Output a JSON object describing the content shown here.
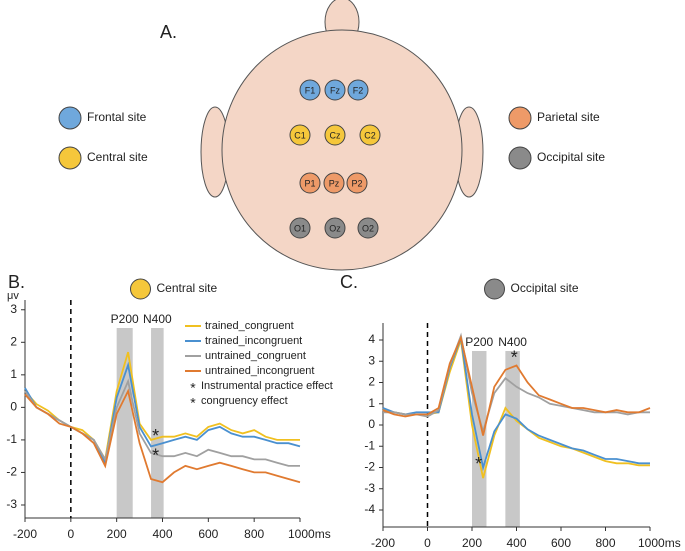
{
  "diagram": {
    "label": "A.",
    "sites": [
      {
        "name": "Frontal site",
        "color": "#6fa8dc",
        "electrodes": [
          "F1",
          "Fz",
          "F2"
        ]
      },
      {
        "name": "Central site",
        "color": "#f5c73b",
        "electrodes": [
          "C1",
          "Cz",
          "C2"
        ]
      },
      {
        "name": "Parietal site",
        "color": "#ee9a68",
        "electrodes": [
          "P1",
          "Pz",
          "P2"
        ]
      },
      {
        "name": "Occipital site",
        "color": "#8a8a8a",
        "electrodes": [
          "O1",
          "Oz",
          "O2"
        ]
      }
    ]
  },
  "chart_data": [
    {
      "type": "line",
      "panel": "B.",
      "title": "Central site",
      "title_marker_color": "#f5c73b",
      "ylabel": "μv",
      "x": [
        -200,
        -150,
        -100,
        -50,
        0,
        50,
        100,
        150,
        200,
        250,
        300,
        350,
        400,
        450,
        500,
        550,
        600,
        650,
        700,
        750,
        800,
        850,
        900,
        950,
        1000
      ],
      "series": [
        {
          "name": "trained_congruent",
          "color": "#f0c020",
          "values": [
            0.5,
            0.1,
            -0.1,
            -0.4,
            -0.6,
            -0.7,
            -1.0,
            -1.6,
            0.5,
            1.7,
            -0.5,
            -1.0,
            -0.9,
            -0.9,
            -0.8,
            -0.9,
            -0.6,
            -0.5,
            -0.7,
            -0.8,
            -0.7,
            -0.9,
            -1.0,
            -1.0,
            -1.0
          ]
        },
        {
          "name": "trained_incongruent",
          "color": "#4a90d0",
          "values": [
            0.6,
            0.0,
            -0.2,
            -0.4,
            -0.6,
            -0.8,
            -1.0,
            -1.7,
            0.3,
            1.3,
            -0.6,
            -1.2,
            -1.1,
            -1.0,
            -0.9,
            -1.0,
            -0.7,
            -0.6,
            -0.8,
            -0.9,
            -0.9,
            -1.0,
            -1.1,
            -1.1,
            -1.2
          ]
        },
        {
          "name": "untrained_congruent",
          "color": "#a0a0a0",
          "values": [
            0.5,
            0.0,
            -0.2,
            -0.4,
            -0.6,
            -0.8,
            -1.0,
            -1.6,
            0.0,
            0.8,
            -0.8,
            -1.4,
            -1.5,
            -1.5,
            -1.4,
            -1.5,
            -1.3,
            -1.4,
            -1.5,
            -1.5,
            -1.6,
            -1.6,
            -1.7,
            -1.8,
            -1.8
          ]
        },
        {
          "name": "untrained_incongruent",
          "color": "#e07a30",
          "values": [
            0.4,
            0.0,
            -0.2,
            -0.5,
            -0.6,
            -0.8,
            -1.1,
            -1.8,
            -0.2,
            0.5,
            -1.1,
            -2.2,
            -2.3,
            -2.0,
            -1.8,
            -1.9,
            -1.8,
            -1.7,
            -1.8,
            -1.9,
            -2.0,
            -2.0,
            -2.1,
            -2.2,
            -2.3
          ]
        }
      ],
      "legend_notes": [
        {
          "symbol": "*",
          "label": "Instrumental practice effect",
          "color": "#e8202a"
        },
        {
          "symbol": "*",
          "label": "congruency effect",
          "color": "#000000"
        }
      ],
      "bands": [
        {
          "label": "P200",
          "range": [
            200,
            270
          ]
        },
        {
          "label": "N400",
          "range": [
            350,
            405
          ]
        }
      ],
      "annotations": [
        {
          "text": "*",
          "x": 370,
          "y": -0.8,
          "color": "#000000"
        },
        {
          "text": "*",
          "x": 370,
          "y": -1.4,
          "color": "#e8202a"
        }
      ],
      "xlim": [
        -200,
        1000
      ],
      "xticks": [
        -200,
        0,
        200,
        400,
        600,
        800,
        {
          "value": 1000,
          "label": "1000ms"
        }
      ],
      "ylim": [
        -3.4,
        3.3
      ],
      "yticks": [
        3,
        2,
        1,
        0,
        -1,
        -2,
        -3
      ]
    },
    {
      "type": "line",
      "panel": "C.",
      "title": "Occipital site",
      "title_marker_color": "#8a8a8a",
      "x": [
        -200,
        -150,
        -100,
        -50,
        0,
        50,
        100,
        150,
        200,
        250,
        300,
        350,
        400,
        450,
        500,
        550,
        600,
        650,
        700,
        750,
        800,
        850,
        900,
        950,
        1000
      ],
      "series": [
        {
          "name": "trained_congruent",
          "color": "#f0c020",
          "values": [
            0.7,
            0.6,
            0.5,
            0.5,
            0.5,
            0.6,
            2.5,
            4.0,
            0.0,
            -2.5,
            -0.5,
            0.8,
            0.2,
            -0.2,
            -0.6,
            -0.8,
            -1.0,
            -1.1,
            -1.3,
            -1.5,
            -1.7,
            -1.8,
            -1.8,
            -1.9,
            -1.9
          ]
        },
        {
          "name": "trained_incongruent",
          "color": "#4a90d0",
          "values": [
            0.8,
            0.6,
            0.5,
            0.6,
            0.6,
            0.6,
            2.7,
            4.1,
            0.5,
            -2.0,
            -0.3,
            0.5,
            0.3,
            -0.2,
            -0.5,
            -0.7,
            -0.9,
            -1.1,
            -1.2,
            -1.4,
            -1.6,
            -1.6,
            -1.7,
            -1.8,
            -1.8
          ]
        },
        {
          "name": "untrained_congruent",
          "color": "#a0a0a0",
          "values": [
            0.6,
            0.6,
            0.5,
            0.5,
            0.4,
            0.7,
            2.8,
            4.2,
            1.5,
            -0.3,
            1.5,
            2.2,
            1.8,
            1.5,
            1.3,
            1.0,
            0.9,
            0.8,
            0.7,
            0.6,
            0.6,
            0.6,
            0.5,
            0.6,
            0.6
          ]
        },
        {
          "name": "untrained_incongruent",
          "color": "#e07a30",
          "values": [
            0.7,
            0.5,
            0.4,
            0.5,
            0.5,
            0.8,
            2.9,
            4.1,
            1.8,
            -0.5,
            1.8,
            2.6,
            2.8,
            2.0,
            1.4,
            1.2,
            1.0,
            0.8,
            0.8,
            0.7,
            0.6,
            0.7,
            0.6,
            0.6,
            0.8
          ]
        }
      ],
      "bands": [
        {
          "label": "P200",
          "range": [
            200,
            265
          ]
        },
        {
          "label": "N400",
          "range": [
            350,
            415
          ]
        }
      ],
      "annotations": [
        {
          "text": "*",
          "x": 230,
          "y": -1.7,
          "color": "#e8202a"
        },
        {
          "text": "*",
          "x": 390,
          "y": 3.3,
          "color": "#000000"
        }
      ],
      "xlim": [
        -200,
        1000
      ],
      "xticks": [
        -200,
        0,
        200,
        400,
        600,
        800,
        {
          "value": 1000,
          "label": "1000ms"
        }
      ],
      "ylim": [
        -4.8,
        4.8
      ],
      "yticks": [
        4,
        3,
        2,
        1,
        0,
        -1,
        -2,
        -3,
        -4
      ]
    }
  ]
}
